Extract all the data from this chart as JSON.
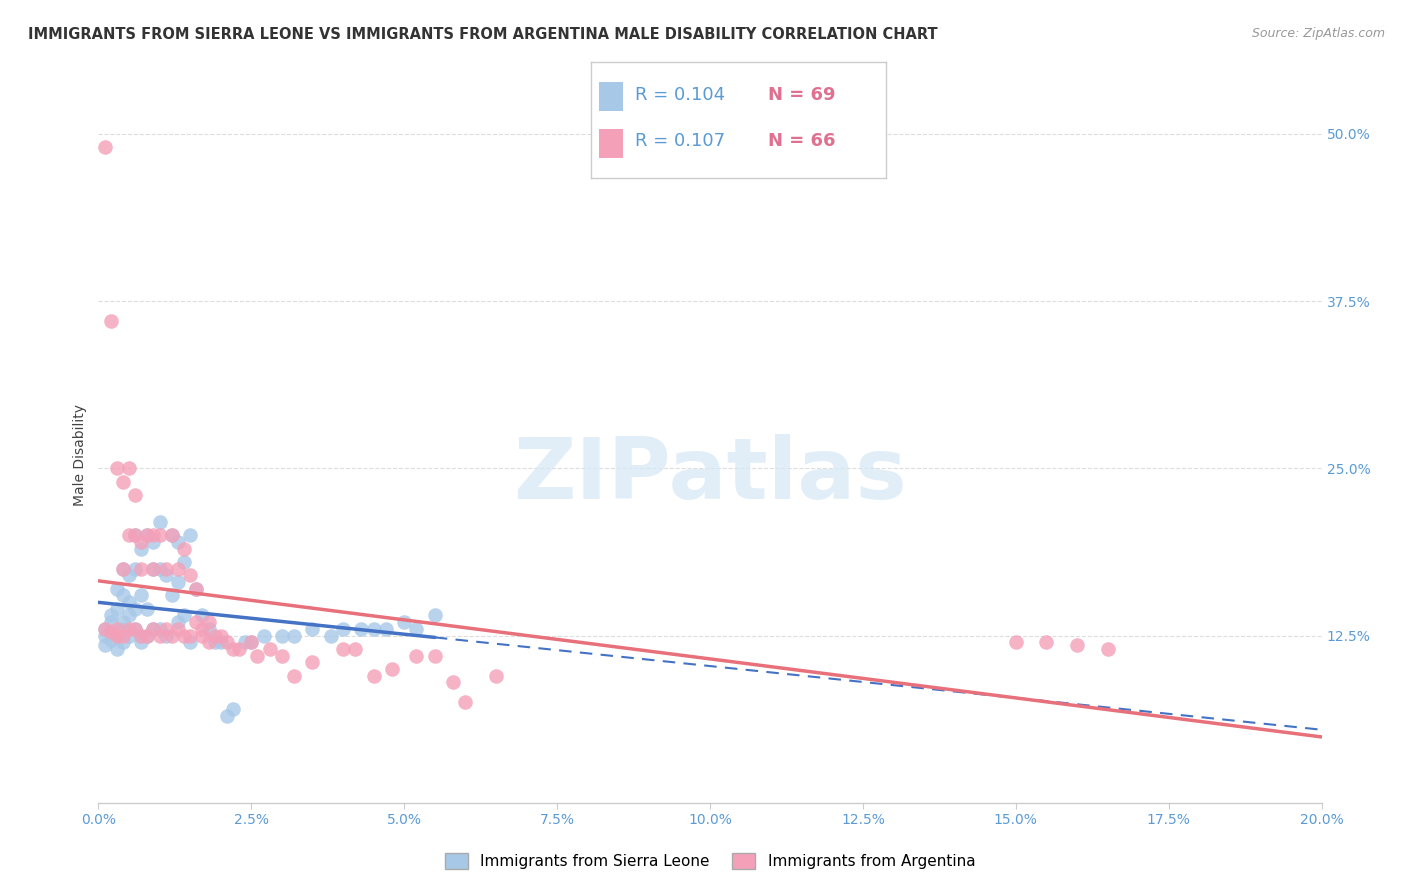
{
  "title": "IMMIGRANTS FROM SIERRA LEONE VS IMMIGRANTS FROM ARGENTINA MALE DISABILITY CORRELATION CHART",
  "source": "Source: ZipAtlas.com",
  "ylabel": "Male Disability",
  "xlim": [
    0.0,
    0.2
  ],
  "ylim": [
    0.0,
    0.52
  ],
  "xtick_vals": [
    0.0,
    0.025,
    0.05,
    0.075,
    0.1,
    0.125,
    0.15,
    0.175,
    0.2
  ],
  "xtick_labels": [
    "0.0%",
    "2.5%",
    "5.0%",
    "7.5%",
    "10.0%",
    "12.5%",
    "15.0%",
    "17.5%",
    "20.0%"
  ],
  "ytick_vals": [
    0.125,
    0.25,
    0.375,
    0.5
  ],
  "ytick_labels": [
    "12.5%",
    "25.0%",
    "37.5%",
    "50.0%"
  ],
  "color_sierra": "#a8c8e8",
  "color_argentina": "#f4a0b8",
  "line_sierra": "#4472c4",
  "line_argentina": "#e8707a",
  "legend_box_color": "#cccccc",
  "watermark_color": "#d5e8f5",
  "bg_color": "#ffffff",
  "grid_color": "#dddddd",
  "sierra_x": [
    0.001,
    0.001,
    0.001,
    0.002,
    0.002,
    0.002,
    0.002,
    0.003,
    0.003,
    0.003,
    0.003,
    0.004,
    0.004,
    0.004,
    0.004,
    0.004,
    0.005,
    0.005,
    0.005,
    0.005,
    0.006,
    0.006,
    0.006,
    0.006,
    0.007,
    0.007,
    0.007,
    0.007,
    0.008,
    0.008,
    0.008,
    0.009,
    0.009,
    0.009,
    0.01,
    0.01,
    0.01,
    0.011,
    0.011,
    0.012,
    0.012,
    0.013,
    0.013,
    0.013,
    0.014,
    0.014,
    0.015,
    0.015,
    0.016,
    0.017,
    0.018,
    0.019,
    0.02,
    0.021,
    0.022,
    0.024,
    0.025,
    0.027,
    0.03,
    0.032,
    0.035,
    0.038,
    0.04,
    0.043,
    0.045,
    0.047,
    0.05,
    0.052,
    0.055
  ],
  "sierra_y": [
    0.13,
    0.125,
    0.118,
    0.14,
    0.128,
    0.122,
    0.135,
    0.16,
    0.115,
    0.125,
    0.145,
    0.175,
    0.13,
    0.12,
    0.155,
    0.135,
    0.17,
    0.14,
    0.125,
    0.15,
    0.2,
    0.175,
    0.13,
    0.145,
    0.19,
    0.155,
    0.12,
    0.125,
    0.2,
    0.125,
    0.145,
    0.195,
    0.175,
    0.13,
    0.21,
    0.175,
    0.13,
    0.17,
    0.125,
    0.2,
    0.155,
    0.195,
    0.165,
    0.135,
    0.18,
    0.14,
    0.2,
    0.12,
    0.16,
    0.14,
    0.13,
    0.12,
    0.12,
    0.065,
    0.07,
    0.12,
    0.12,
    0.125,
    0.125,
    0.125,
    0.13,
    0.125,
    0.13,
    0.13,
    0.13,
    0.13,
    0.135,
    0.13,
    0.14
  ],
  "argentina_x": [
    0.001,
    0.001,
    0.002,
    0.002,
    0.003,
    0.003,
    0.003,
    0.004,
    0.004,
    0.004,
    0.005,
    0.005,
    0.005,
    0.006,
    0.006,
    0.006,
    0.007,
    0.007,
    0.007,
    0.008,
    0.008,
    0.009,
    0.009,
    0.009,
    0.01,
    0.01,
    0.011,
    0.011,
    0.012,
    0.012,
    0.013,
    0.013,
    0.014,
    0.014,
    0.015,
    0.015,
    0.016,
    0.016,
    0.017,
    0.017,
    0.018,
    0.018,
    0.019,
    0.02,
    0.021,
    0.022,
    0.023,
    0.025,
    0.026,
    0.028,
    0.03,
    0.032,
    0.035,
    0.04,
    0.042,
    0.045,
    0.048,
    0.052,
    0.055,
    0.058,
    0.06,
    0.065,
    0.15,
    0.155,
    0.16,
    0.165
  ],
  "argentina_y": [
    0.49,
    0.13,
    0.36,
    0.128,
    0.25,
    0.13,
    0.125,
    0.24,
    0.175,
    0.125,
    0.2,
    0.13,
    0.25,
    0.23,
    0.2,
    0.13,
    0.195,
    0.175,
    0.125,
    0.2,
    0.125,
    0.175,
    0.13,
    0.2,
    0.2,
    0.125,
    0.175,
    0.13,
    0.2,
    0.125,
    0.175,
    0.13,
    0.19,
    0.125,
    0.17,
    0.125,
    0.135,
    0.16,
    0.13,
    0.125,
    0.12,
    0.135,
    0.125,
    0.125,
    0.12,
    0.115,
    0.115,
    0.12,
    0.11,
    0.115,
    0.11,
    0.095,
    0.105,
    0.115,
    0.115,
    0.095,
    0.1,
    0.11,
    0.11,
    0.09,
    0.075,
    0.095,
    0.12,
    0.12,
    0.118,
    0.115
  ]
}
